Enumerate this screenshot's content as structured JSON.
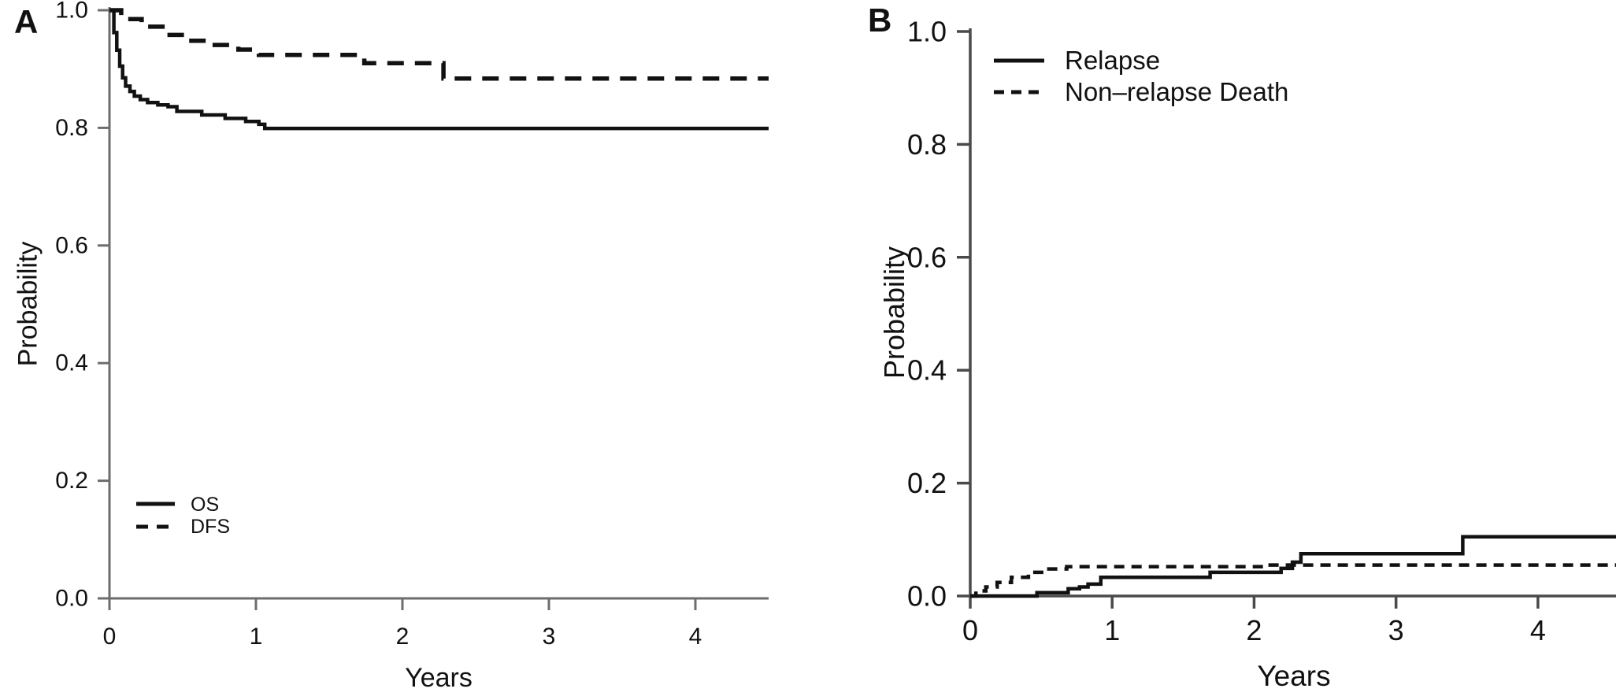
{
  "figure": {
    "background": "#ffffff",
    "text_color": "#111111",
    "curve_color": "#111111",
    "axis_color_a": "#6d6d6d",
    "axis_color_b": "#4a4a4a",
    "description": "Two-panel survival analysis figure: panel A Kaplan-Meier curves (OS, DFS), panel B cumulative incidence curves (Relapse, Non-relapse Death)"
  },
  "chart_data": [
    {
      "panel_label": "A",
      "type": "line",
      "line_style": "step-after",
      "xlabel": "Years",
      "ylabel": "Probability",
      "xlim": [
        0,
        4.5
      ],
      "ylim": [
        0,
        1.0
      ],
      "xticks": [
        0,
        1,
        2,
        3,
        4
      ],
      "ytick_labels": [
        "0.0",
        "0.2",
        "0.4",
        "0.6",
        "0.8",
        "1.0"
      ],
      "grid": false,
      "legend_position": "lower-left",
      "series": [
        {
          "name": "OS",
          "line": "solid",
          "color": "#111111",
          "points": [
            [
              0,
              1.0
            ],
            [
              0.03,
              0.962
            ],
            [
              0.05,
              0.932
            ],
            [
              0.07,
              0.905
            ],
            [
              0.09,
              0.885
            ],
            [
              0.11,
              0.871
            ],
            [
              0.14,
              0.862
            ],
            [
              0.17,
              0.854
            ],
            [
              0.21,
              0.848
            ],
            [
              0.26,
              0.843
            ],
            [
              0.33,
              0.839
            ],
            [
              0.4,
              0.836
            ],
            [
              0.46,
              0.828
            ],
            [
              0.63,
              0.822
            ],
            [
              0.79,
              0.816
            ],
            [
              0.93,
              0.811
            ],
            [
              1.02,
              0.806
            ],
            [
              1.06,
              0.799
            ],
            [
              4.5,
              0.799
            ]
          ]
        },
        {
          "name": "DFS",
          "line": "dashed",
          "color": "#111111",
          "points": [
            [
              0,
              1.0
            ],
            [
              0.08,
              0.985
            ],
            [
              0.22,
              0.972
            ],
            [
              0.38,
              0.958
            ],
            [
              0.52,
              0.948
            ],
            [
              0.68,
              0.941
            ],
            [
              0.88,
              0.933
            ],
            [
              1.02,
              0.924
            ],
            [
              1.74,
              0.91
            ],
            [
              2.28,
              0.884
            ],
            [
              4.5,
              0.884
            ]
          ]
        }
      ]
    },
    {
      "panel_label": "B",
      "type": "line",
      "line_style": "step-after",
      "xlabel": "Years",
      "ylabel": "Probability",
      "xlim": [
        0,
        4.55
      ],
      "ylim": [
        0,
        1.0
      ],
      "xticks": [
        0,
        1,
        2,
        3,
        4
      ],
      "ytick_labels": [
        "0.0",
        "0.2",
        "0.4",
        "0.6",
        "0.8",
        "1.0"
      ],
      "grid": false,
      "legend_position": "upper-left",
      "series": [
        {
          "name": "Relapse",
          "line": "solid",
          "color": "#111111",
          "points": [
            [
              0,
              0
            ],
            [
              0.47,
              0.006
            ],
            [
              0.69,
              0.013
            ],
            [
              0.77,
              0.016
            ],
            [
              0.83,
              0.021
            ],
            [
              0.92,
              0.033
            ],
            [
              1.69,
              0.042
            ],
            [
              2.19,
              0.049
            ],
            [
              2.27,
              0.06
            ],
            [
              2.33,
              0.075
            ],
            [
              3.47,
              0.105
            ],
            [
              4.55,
              0.105
            ]
          ]
        },
        {
          "name": "Non–relapse Death",
          "line": "dashed",
          "color": "#111111",
          "points": [
            [
              0,
              0
            ],
            [
              0.04,
              0.009
            ],
            [
              0.11,
              0.016
            ],
            [
              0.19,
              0.024
            ],
            [
              0.29,
              0.033
            ],
            [
              0.41,
              0.042
            ],
            [
              0.54,
              0.048
            ],
            [
              0.68,
              0.052
            ],
            [
              2.1,
              0.055
            ],
            [
              4.55,
              0.055
            ]
          ]
        }
      ]
    }
  ]
}
